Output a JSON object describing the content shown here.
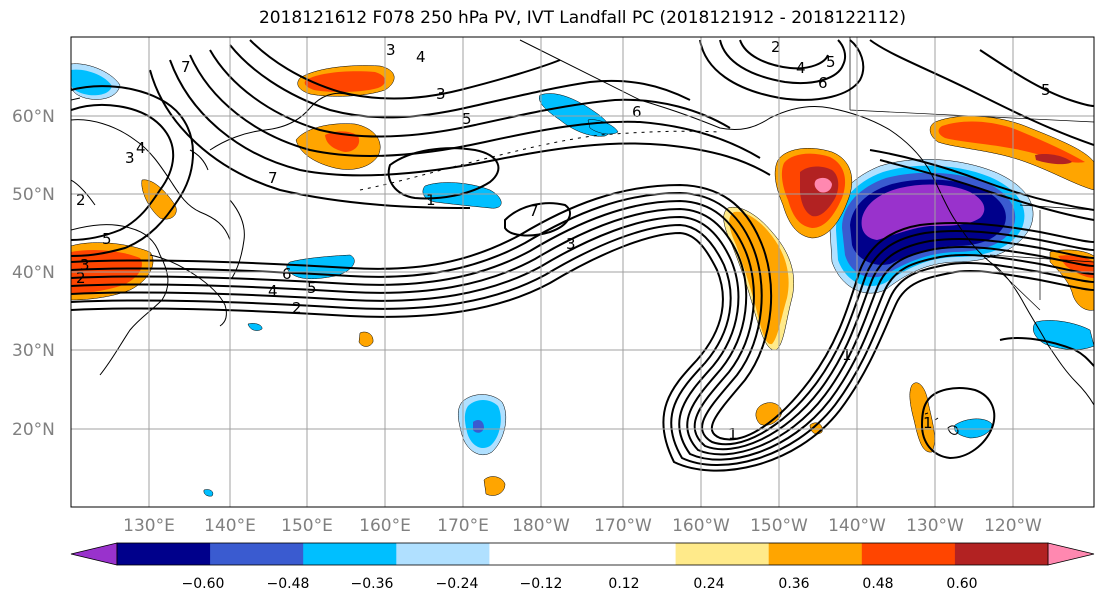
{
  "title": "2018121612 F078 250 hPa PV, IVT Landfall PC (2018121912 - 2018122112)",
  "lat_labels": [
    "60°N",
    "50°N",
    "40°N",
    "30°N",
    "20°N"
  ],
  "lon_labels": [
    "130°E",
    "140°E",
    "150°E",
    "160°E",
    "170°E",
    "180°W",
    "170°W",
    "160°W",
    "150°W",
    "140°W",
    "130°W",
    "120°W"
  ],
  "colorbar": {
    "colors": [
      "#9932cc",
      "#00008b",
      "#3a5bd0",
      "#00bfff",
      "#b0e0ff",
      "#ffffff",
      "#ffffff",
      "#ffea8a",
      "#ffa500",
      "#ff4500",
      "#b22222",
      "#ff88b0"
    ],
    "ticks": [
      "−0.60",
      "−0.48",
      "−0.36",
      "−0.24",
      "−0.12",
      "0.12",
      "0.24",
      "0.36",
      "0.48",
      "0.60"
    ]
  },
  "contour_labels": [
    "7",
    "3",
    "4",
    "3",
    "2",
    "5",
    "4",
    "5",
    "6",
    "6",
    "7",
    "2",
    "6",
    "5",
    "4",
    "3",
    "2",
    "3",
    "1",
    "7",
    "1",
    "1",
    "1",
    "5",
    "5",
    "4",
    "3",
    "2"
  ]
}
